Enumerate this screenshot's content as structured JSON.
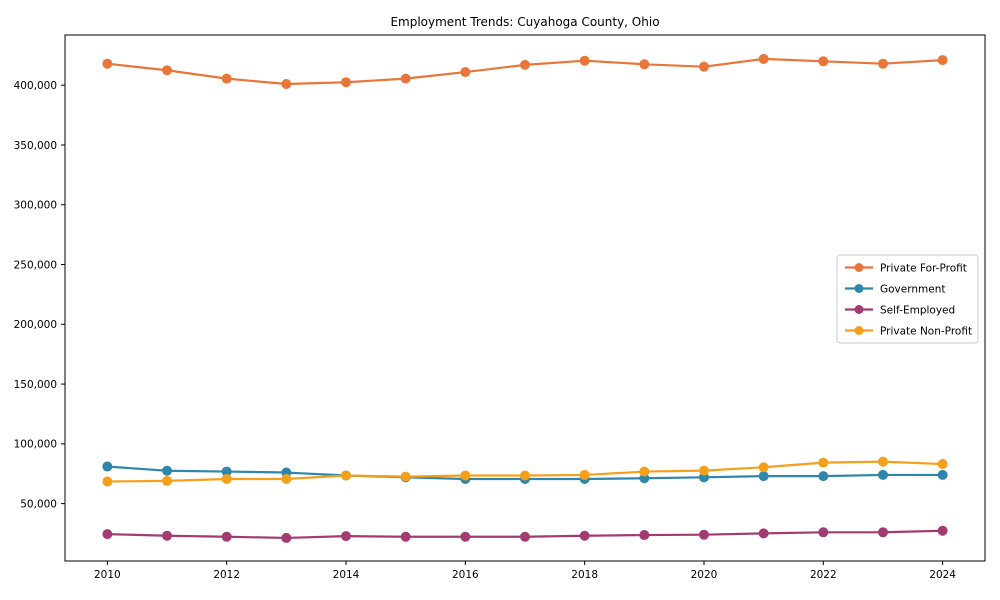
{
  "chart_data": {
    "type": "line",
    "title": "Employment Trends: Cuyahoga County, Ohio",
    "xlabel": "",
    "ylabel": "",
    "x": [
      2010,
      2011,
      2012,
      2013,
      2014,
      2015,
      2016,
      2017,
      2018,
      2019,
      2020,
      2021,
      2022,
      2023,
      2024
    ],
    "series": [
      {
        "name": "Private For-Profit",
        "color": "#E8763A",
        "values": [
          418000,
          412500,
          405500,
          401000,
          402500,
          405500,
          411000,
          417000,
          420500,
          417500,
          415500,
          422000,
          420000,
          418000,
          421000
        ]
      },
      {
        "name": "Government",
        "color": "#2E86AB",
        "values": [
          81000,
          77500,
          76800,
          76000,
          73500,
          72000,
          70600,
          70600,
          70600,
          71200,
          72000,
          73000,
          73000,
          74000,
          74000
        ]
      },
      {
        "name": "Self-Employed",
        "color": "#A23B72",
        "values": [
          24500,
          23100,
          22300,
          21300,
          22800,
          22300,
          22300,
          22300,
          23100,
          23700,
          24000,
          25100,
          26000,
          26000,
          27300
        ]
      },
      {
        "name": "Private Non-Profit",
        "color": "#F5A01B",
        "values": [
          68500,
          69000,
          70600,
          70600,
          73500,
          72600,
          73500,
          73500,
          74000,
          76800,
          77600,
          80400,
          84300,
          85100,
          83100
        ]
      }
    ],
    "xticks": [
      2010,
      2012,
      2014,
      2016,
      2018,
      2020,
      2022,
      2024
    ],
    "yticks": [
      50000,
      100000,
      150000,
      200000,
      250000,
      300000,
      350000,
      400000
    ],
    "xlim": [
      2009.29,
      2024.71
    ],
    "ylim": [
      2000,
      442000
    ],
    "grid": false,
    "legend_position": "center-right",
    "legend_entries": [
      "Private For-Profit",
      "Government",
      "Self-Employed",
      "Private Non-Profit"
    ],
    "marker": "circle",
    "background": "#ffffff",
    "spine_color": "#000000"
  }
}
